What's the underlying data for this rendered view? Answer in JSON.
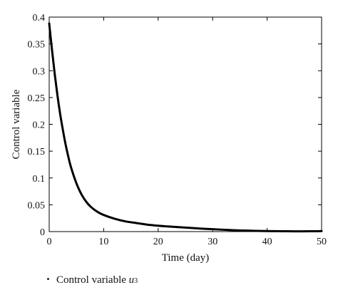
{
  "chart_data": {
    "type": "line",
    "xlabel": "Time (day)",
    "ylabel": "Control variable",
    "xlim": [
      0,
      50
    ],
    "ylim": [
      0,
      0.4
    ],
    "xticks": [
      "0",
      "10",
      "20",
      "30",
      "40",
      "50"
    ],
    "yticks": [
      "0",
      "0.05",
      "0.1",
      "0.15",
      "0.2",
      "0.25",
      "0.3",
      "0.35",
      "0.4"
    ],
    "grid": false,
    "series": [
      {
        "name": "Control variable u3",
        "color": "#000000",
        "x": [
          0,
          0.5,
          1,
          1.5,
          2,
          2.5,
          3,
          3.5,
          4,
          5,
          6,
          7,
          8,
          9,
          10,
          12,
          14,
          16,
          18,
          20,
          22,
          25,
          28,
          30,
          33,
          35,
          38,
          40,
          43,
          45,
          48,
          50
        ],
        "y": [
          0.388,
          0.34,
          0.295,
          0.255,
          0.22,
          0.19,
          0.163,
          0.14,
          0.12,
          0.09,
          0.068,
          0.053,
          0.043,
          0.036,
          0.031,
          0.024,
          0.019,
          0.016,
          0.013,
          0.011,
          0.0095,
          0.0075,
          0.0055,
          0.0045,
          0.003,
          0.0022,
          0.0014,
          0.001,
          0.0007,
          0.0005,
          0.0006,
          0.001
        ]
      }
    ]
  },
  "legend": {
    "label_text": "Control variable ",
    "var": "u",
    "sub": "3"
  }
}
